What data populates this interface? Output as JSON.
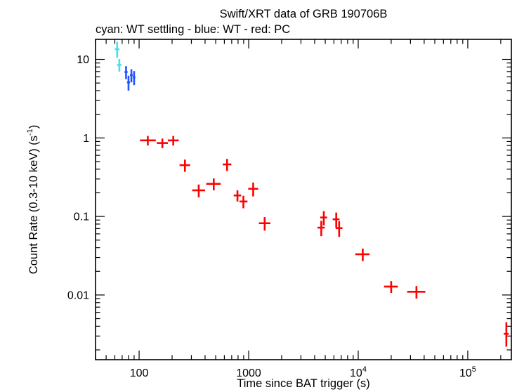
{
  "chart_data": {
    "type": "scatter",
    "marker": "cross-errorbar",
    "title": "Swift/XRT data of GRB 190706B",
    "subtitle": "cyan: WT settling - blue: WT - red: PC",
    "xlabel": "Time since BAT trigger (s)",
    "ylabel": {
      "pre": "Count Rate (0.3-10 keV) (s",
      "sup": "-1",
      "post": ")"
    },
    "xscale": "log",
    "yscale": "log",
    "grid": false,
    "xlim": [
      40,
      250000
    ],
    "ylim": [
      0.0015,
      18
    ],
    "x_ticks": [
      {
        "value": 100,
        "text": "100",
        "sup": ""
      },
      {
        "value": 1000,
        "text": "1000",
        "sup": ""
      },
      {
        "value": 10000,
        "text": "10",
        "sup": "4"
      },
      {
        "value": 100000,
        "text": "10",
        "sup": "5"
      }
    ],
    "y_ticks": [
      {
        "value": 10,
        "text": "10"
      },
      {
        "value": 1,
        "text": "1"
      },
      {
        "value": 0.1,
        "text": "0.1"
      },
      {
        "value": 0.01,
        "text": "0.01"
      }
    ],
    "series": [
      {
        "name": "WT settling",
        "color": "#45E0F0",
        "points": [
          {
            "t": 63,
            "terr": [
              3,
              3
            ],
            "rate": 13.5,
            "rerr": [
              3.0,
              3.2
            ]
          },
          {
            "t": 66,
            "terr": [
              3,
              3
            ],
            "rate": 8.5,
            "rerr": [
              1.5,
              1.6
            ]
          }
        ]
      },
      {
        "name": "WT",
        "color": "#2255FF",
        "points": [
          {
            "t": 76,
            "terr": [
              2.5,
              2.5
            ],
            "rate": 6.9,
            "rerr": [
              1.3,
              1.3
            ]
          },
          {
            "t": 80,
            "terr": [
              2.5,
              2.5
            ],
            "rate": 5.1,
            "rerr": [
              1.1,
              1.1
            ]
          },
          {
            "t": 85,
            "terr": [
              2.5,
              2.5
            ],
            "rate": 6.3,
            "rerr": [
              1.2,
              1.2
            ]
          },
          {
            "t": 90,
            "terr": [
              2.5,
              2.5
            ],
            "rate": 5.9,
            "rerr": [
              1.2,
              1.2
            ]
          }
        ]
      },
      {
        "name": "PC",
        "color": "#FF0000",
        "points": [
          {
            "t": 120,
            "terr": [
              18,
              22
            ],
            "rate": 0.93,
            "rerr": [
              0.13,
              0.13
            ]
          },
          {
            "t": 163,
            "terr": [
              18,
              20
            ],
            "rate": 0.86,
            "rerr": [
              0.12,
              0.12
            ]
          },
          {
            "t": 205,
            "terr": [
              22,
              25
            ],
            "rate": 0.93,
            "rerr": [
              0.13,
              0.13
            ]
          },
          {
            "t": 262,
            "terr": [
              28,
              30
            ],
            "rate": 0.45,
            "rerr": [
              0.08,
              0.08
            ]
          },
          {
            "t": 350,
            "terr": [
              45,
              50
            ],
            "rate": 0.215,
            "rerr": [
              0.04,
              0.04
            ]
          },
          {
            "t": 480,
            "terr": [
              70,
              75
            ],
            "rate": 0.26,
            "rerr": [
              0.045,
              0.045
            ]
          },
          {
            "t": 635,
            "terr": [
              55,
              60
            ],
            "rate": 0.46,
            "rerr": [
              0.08,
              0.08
            ]
          },
          {
            "t": 790,
            "terr": [
              60,
              65
            ],
            "rate": 0.185,
            "rerr": [
              0.03,
              0.03
            ]
          },
          {
            "t": 895,
            "terr": [
              70,
              80
            ],
            "rate": 0.155,
            "rerr": [
              0.028,
              0.028
            ]
          },
          {
            "t": 1100,
            "terr": [
              110,
              120
            ],
            "rate": 0.225,
            "rerr": [
              0.045,
              0.045
            ]
          },
          {
            "t": 1400,
            "terr": [
              160,
              180
            ],
            "rate": 0.082,
            "rerr": [
              0.016,
              0.016
            ]
          },
          {
            "t": 4600,
            "terr": [
              350,
              350
            ],
            "rate": 0.072,
            "rerr": [
              0.016,
              0.016
            ]
          },
          {
            "t": 4850,
            "terr": [
              350,
              350
            ],
            "rate": 0.097,
            "rerr": [
              0.02,
              0.02
            ]
          },
          {
            "t": 6300,
            "terr": [
              450,
              450
            ],
            "rate": 0.092,
            "rerr": [
              0.02,
              0.02
            ]
          },
          {
            "t": 6700,
            "terr": [
              480,
              480
            ],
            "rate": 0.071,
            "rerr": [
              0.016,
              0.016
            ]
          },
          {
            "t": 11000,
            "terr": [
              1600,
              1700
            ],
            "rate": 0.033,
            "rerr": [
              0.006,
              0.006
            ]
          },
          {
            "t": 20000,
            "terr": [
              2800,
              3000
            ],
            "rate": 0.0128,
            "rerr": [
              0.0022,
              0.0022
            ]
          },
          {
            "t": 34000,
            "terr": [
              6000,
              7000
            ],
            "rate": 0.011,
            "rerr": [
              0.002,
              0.002
            ]
          },
          {
            "t": 225000,
            "terr": [
              12000,
              12000
            ],
            "rate": 0.0032,
            "rerr": [
              0.001,
              0.0013
            ]
          }
        ]
      }
    ]
  }
}
